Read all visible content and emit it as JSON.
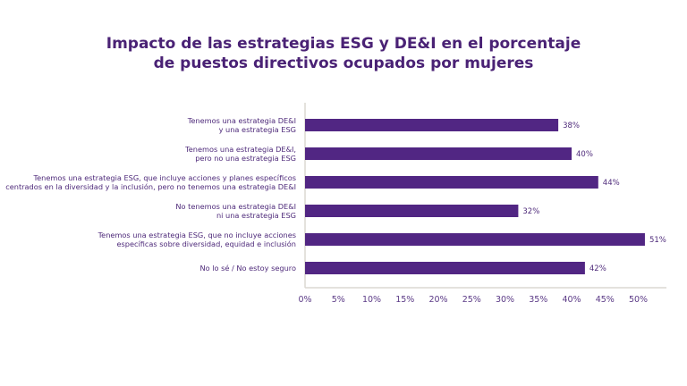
{
  "colors": {
    "bar": "#512683",
    "text": "#4a2275",
    "axis": "#dcd8d2"
  },
  "chart_data": {
    "type": "bar",
    "orientation": "horizontal",
    "title": "Impacto de las estrategias ESG y DE&I en el porcentaje de puestos directivos ocupados por mujeres",
    "title_lines": [
      "Impacto de las estrategias ESG y DE&I en el porcentaje",
      "de puestos directivos ocupados por mujeres"
    ],
    "categories": [
      [
        "Tenemos una estrategia DE&I",
        "y una estrategia ESG"
      ],
      [
        "Tenemos una estrategia DE&I,",
        "pero no una estrategia ESG"
      ],
      [
        "Tenemos una estrategia ESG, que incluye acciones y planes específicos",
        "centrados en la diversidad y la inclusión, pero no tenemos una estrategia DE&I"
      ],
      [
        "No tenemos una estrategia DE&I",
        "ni una estrategia ESG"
      ],
      [
        "Tenemos una estrategia ESG, que no incluye acciones",
        "específicas sobre diversidad, equidad e inclusión"
      ],
      [
        "No lo sé / No estoy seguro"
      ]
    ],
    "values": [
      38,
      40,
      44,
      32,
      51,
      42
    ],
    "value_labels": [
      "38%",
      "40%",
      "44%",
      "32%",
      "51%",
      "42%"
    ],
    "xlabel": "",
    "ylabel": "",
    "xlim": [
      0,
      54
    ],
    "xticks": [
      0,
      5,
      10,
      15,
      20,
      25,
      30,
      35,
      40,
      45,
      50
    ],
    "xtick_labels": [
      "0%",
      "5%",
      "10%",
      "15%",
      "20%",
      "25%",
      "30%",
      "35%",
      "40%",
      "45%",
      "50%"
    ],
    "grid": false,
    "legend": "none"
  }
}
